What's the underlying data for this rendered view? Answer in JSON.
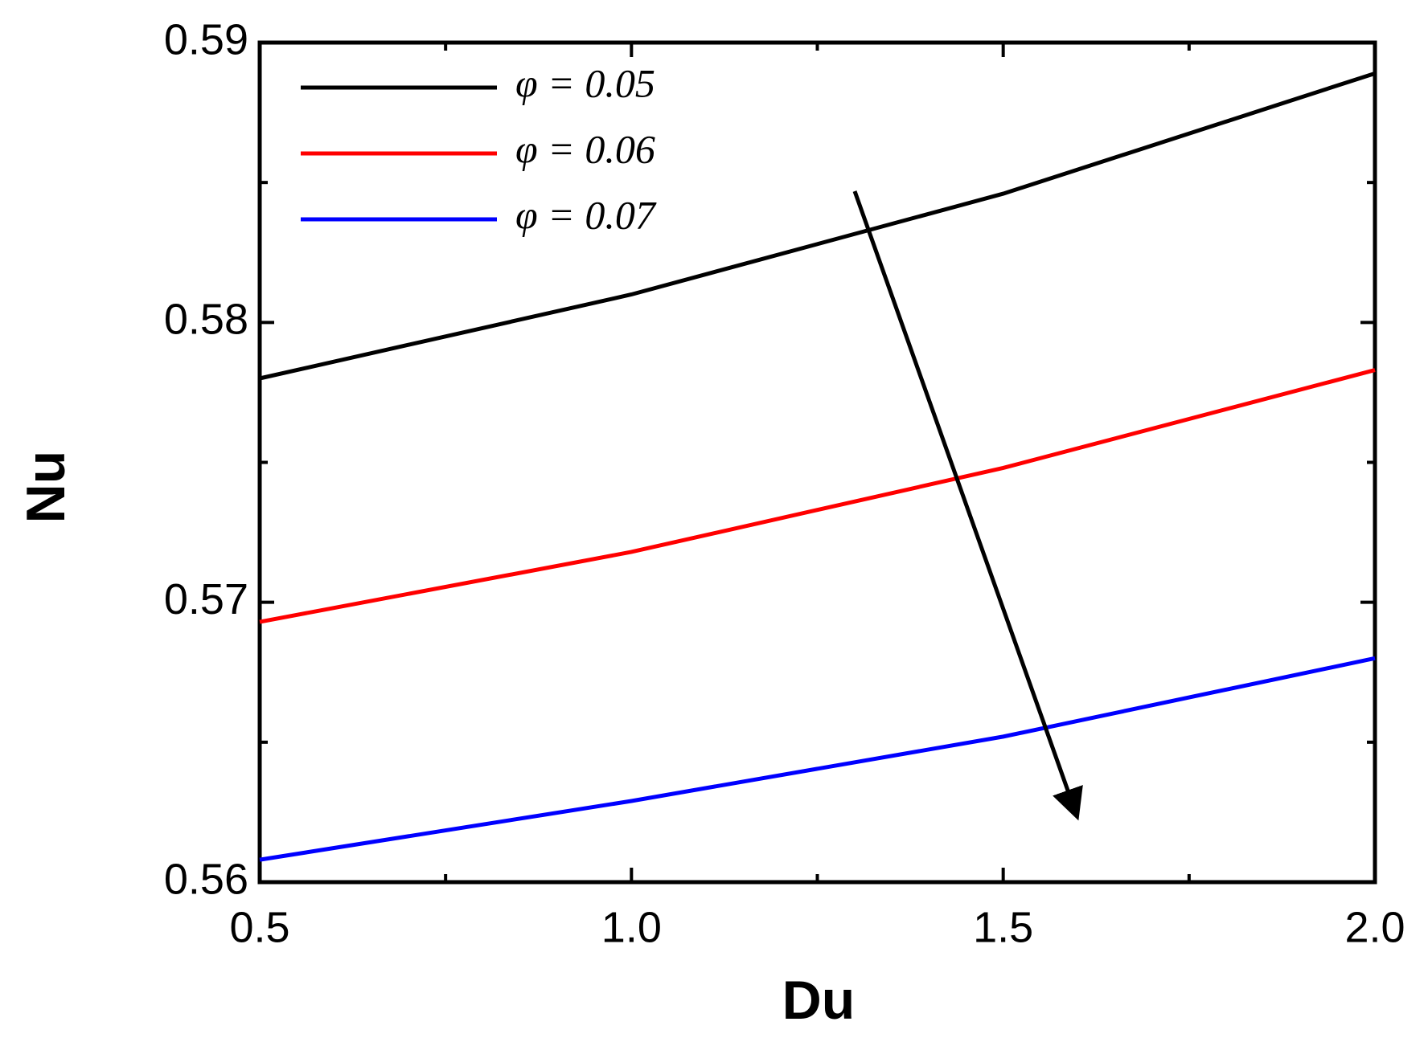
{
  "chart_data": {
    "type": "line",
    "x_label": "Du",
    "y_label": "Nu",
    "x": [
      0.5,
      1.0,
      1.5,
      2.0
    ],
    "series": [
      {
        "name": "φ = 0.05",
        "color": "#000000",
        "values": [
          0.578,
          0.581,
          0.5846,
          0.5889
        ]
      },
      {
        "name": "φ = 0.06",
        "color": "#ff0000",
        "values": [
          0.5693,
          0.5718,
          0.5748,
          0.5783
        ]
      },
      {
        "name": "φ = 0.07",
        "color": "#0000ff",
        "values": [
          0.5608,
          0.5629,
          0.5652,
          0.568
        ]
      }
    ],
    "xlim": [
      0.5,
      2.0
    ],
    "xticks": [
      0.5,
      {
        "value": 1,
        "label": "1.0"
      },
      1.5,
      {
        "value": 2,
        "label": "2.0"
      }
    ],
    "xminorticks": [
      0.75,
      1.25,
      1.75
    ],
    "ylim": [
      0.56,
      0.59
    ],
    "yticks": [
      0.56,
      0.57,
      0.58,
      0.59
    ],
    "yminorticks": [
      0.565,
      0.575,
      0.585
    ],
    "grid": false,
    "legend": "upper left"
  }
}
